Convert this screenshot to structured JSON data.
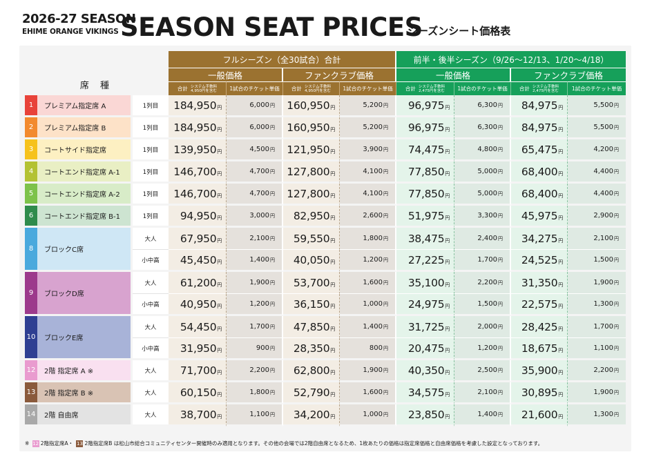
{
  "header": {
    "season": "2026-27 SEASON",
    "team": "EHIME ORANGE VIKINGS",
    "title": "SEASON SEAT PRICES",
    "subtitle": "シーズンシート価格表"
  },
  "columns": {
    "seat_type": "席 種",
    "full_season": "フルシーズン（全30試合）合計",
    "half_season": "前半・後半シーズン（9/26～12/13、1/20～4/18）",
    "general": "一般価格",
    "fanclub": "ファンクラブ価格",
    "total": "合計",
    "fee_full": "システム手数料\n4,950円を含む",
    "fee_half": "システム手数料\n2,475円を含む",
    "per_game": "1試合のチケット単価"
  },
  "yen": "円",
  "colors": {
    "full_season": "#9b7230",
    "half_season": "#16a05a"
  },
  "rows": [
    {
      "num": "1",
      "seat": "プレミアム指定席 A",
      "color": "#e8433a",
      "light": "#fad7d5",
      "tiers": [
        {
          "tier": "1列目",
          "full_gen": "184,950",
          "full_gen_tk": "6,000",
          "full_fc": "160,950",
          "full_fc_tk": "5,200",
          "half_gen": "96,975",
          "half_gen_tk": "6,300",
          "half_fc": "84,975",
          "half_fc_tk": "5,500"
        }
      ]
    },
    {
      "num": "2",
      "seat": "プレミアム指定席 B",
      "color": "#f28a2e",
      "light": "#fde2c8",
      "tiers": [
        {
          "tier": "1列目",
          "full_gen": "184,950",
          "full_gen_tk": "6,000",
          "full_fc": "160,950",
          "full_fc_tk": "5,200",
          "half_gen": "96,975",
          "half_gen_tk": "6,300",
          "half_fc": "84,975",
          "half_fc_tk": "5,500"
        }
      ]
    },
    {
      "num": "3",
      "seat": "コートサイド指定席",
      "color": "#f6c21c",
      "light": "#fdf0c2",
      "tiers": [
        {
          "tier": "1列目",
          "full_gen": "139,950",
          "full_gen_tk": "4,500",
          "full_fc": "121,950",
          "full_fc_tk": "3,900",
          "half_gen": "74,475",
          "half_gen_tk": "4,800",
          "half_fc": "65,475",
          "half_fc_tk": "4,200"
        }
      ]
    },
    {
      "num": "4",
      "seat": "コートエンド指定席 A-1",
      "color": "#b3c233",
      "light": "#e9efc4",
      "tiers": [
        {
          "tier": "1列目",
          "full_gen": "146,700",
          "full_gen_tk": "4,700",
          "full_fc": "127,800",
          "full_fc_tk": "4,100",
          "half_gen": "77,850",
          "half_gen_tk": "5,000",
          "half_fc": "68,400",
          "half_fc_tk": "4,400"
        }
      ]
    },
    {
      "num": "5",
      "seat": "コートエンド指定席 A-2",
      "color": "#7dc24a",
      "light": "#d8ecc8",
      "tiers": [
        {
          "tier": "1列目",
          "full_gen": "146,700",
          "full_gen_tk": "4,700",
          "full_fc": "127,800",
          "full_fc_tk": "4,100",
          "half_gen": "77,850",
          "half_gen_tk": "5,000",
          "half_fc": "68,400",
          "half_fc_tk": "4,400"
        }
      ]
    },
    {
      "num": "6",
      "seat": "コートエンド指定席 B-1",
      "color": "#2f8b4c",
      "light": "#cde4d1",
      "tiers": [
        {
          "tier": "1列目",
          "full_gen": "94,950",
          "full_gen_tk": "3,000",
          "full_fc": "82,950",
          "full_fc_tk": "2,600",
          "half_gen": "51,975",
          "half_gen_tk": "3,300",
          "half_fc": "45,975",
          "half_fc_tk": "2,900"
        }
      ]
    },
    {
      "num": "8",
      "seat": "ブロックC席",
      "color": "#4aa9dd",
      "light": "#cfe7f5",
      "tiers": [
        {
          "tier": "大人",
          "full_gen": "67,950",
          "full_gen_tk": "2,100",
          "full_fc": "59,550",
          "full_fc_tk": "1,800",
          "half_gen": "38,475",
          "half_gen_tk": "2,400",
          "half_fc": "34,275",
          "half_fc_tk": "2,100"
        },
        {
          "tier": "小中高",
          "full_gen": "45,450",
          "full_gen_tk": "1,400",
          "full_fc": "40,050",
          "full_fc_tk": "1,200",
          "half_gen": "27,225",
          "half_gen_tk": "1,700",
          "half_fc": "24,525",
          "half_fc_tk": "1,500"
        }
      ]
    },
    {
      "num": "9",
      "seat": "ブロックD席",
      "color": "#9c3a8c",
      "light": "#d8a3cf",
      "tiers": [
        {
          "tier": "大人",
          "full_gen": "61,200",
          "full_gen_tk": "1,900",
          "full_fc": "53,700",
          "full_fc_tk": "1,600",
          "half_gen": "35,100",
          "half_gen_tk": "2,200",
          "half_fc": "31,350",
          "half_fc_tk": "1,900"
        },
        {
          "tier": "小中高",
          "full_gen": "40,950",
          "full_gen_tk": "1,200",
          "full_fc": "36,150",
          "full_fc_tk": "1,000",
          "half_gen": "24,975",
          "half_gen_tk": "1,500",
          "half_fc": "22,575",
          "half_fc_tk": "1,300"
        }
      ]
    },
    {
      "num": "10",
      "seat": "ブロックE席",
      "color": "#2e3f92",
      "light": "#a8b3d8",
      "tiers": [
        {
          "tier": "大人",
          "full_gen": "54,450",
          "full_gen_tk": "1,700",
          "full_fc": "47,850",
          "full_fc_tk": "1,400",
          "half_gen": "31,725",
          "half_gen_tk": "2,000",
          "half_fc": "28,425",
          "half_fc_tk": "1,700"
        },
        {
          "tier": "小中高",
          "full_gen": "31,950",
          "full_gen_tk": "900",
          "full_fc": "28,350",
          "full_fc_tk": "800",
          "half_gen": "20,475",
          "half_gen_tk": "1,200",
          "half_fc": "18,675",
          "half_fc_tk": "1,100"
        }
      ]
    },
    {
      "num": "12",
      "seat": "2階 指定席 A ※",
      "color": "#e99bcf",
      "light": "#f9e0f0",
      "tiers": [
        {
          "tier": "大人",
          "full_gen": "71,700",
          "full_gen_tk": "2,200",
          "full_fc": "62,800",
          "full_fc_tk": "1,900",
          "half_gen": "40,350",
          "half_gen_tk": "2,500",
          "half_fc": "35,900",
          "half_fc_tk": "2,200"
        }
      ]
    },
    {
      "num": "13",
      "seat": "2階 指定席 B ※",
      "color": "#8a5a3c",
      "light": "#d9c3b4",
      "tiers": [
        {
          "tier": "大人",
          "full_gen": "60,150",
          "full_gen_tk": "1,800",
          "full_fc": "52,790",
          "full_fc_tk": "1,600",
          "half_gen": "34,575",
          "half_gen_tk": "2,100",
          "half_fc": "30,895",
          "half_fc_tk": "1,900"
        }
      ]
    },
    {
      "num": "14",
      "seat": "2階 自由席",
      "color": "#a9a9a9",
      "light": "#e3e3e3",
      "tiers": [
        {
          "tier": "大人",
          "full_gen": "38,700",
          "full_gen_tk": "1,100",
          "full_fc": "34,200",
          "full_fc_tk": "1,000",
          "half_gen": "23,850",
          "half_gen_tk": "1,400",
          "half_fc": "21,600",
          "half_fc_tk": "1,300"
        }
      ]
    }
  ],
  "note": {
    "mark": "※",
    "chip_a": "12",
    "label_a": "2階指定席A・",
    "chip_b": "13",
    "label_b": "2階指定席B",
    "text": "は松山市総合コミュニティセンター開催時のみ適用となります。その他の会場では2階自由席となるため、1枚あたりの価格は指定席価格と自由席価格を考慮した設定となっております。"
  }
}
